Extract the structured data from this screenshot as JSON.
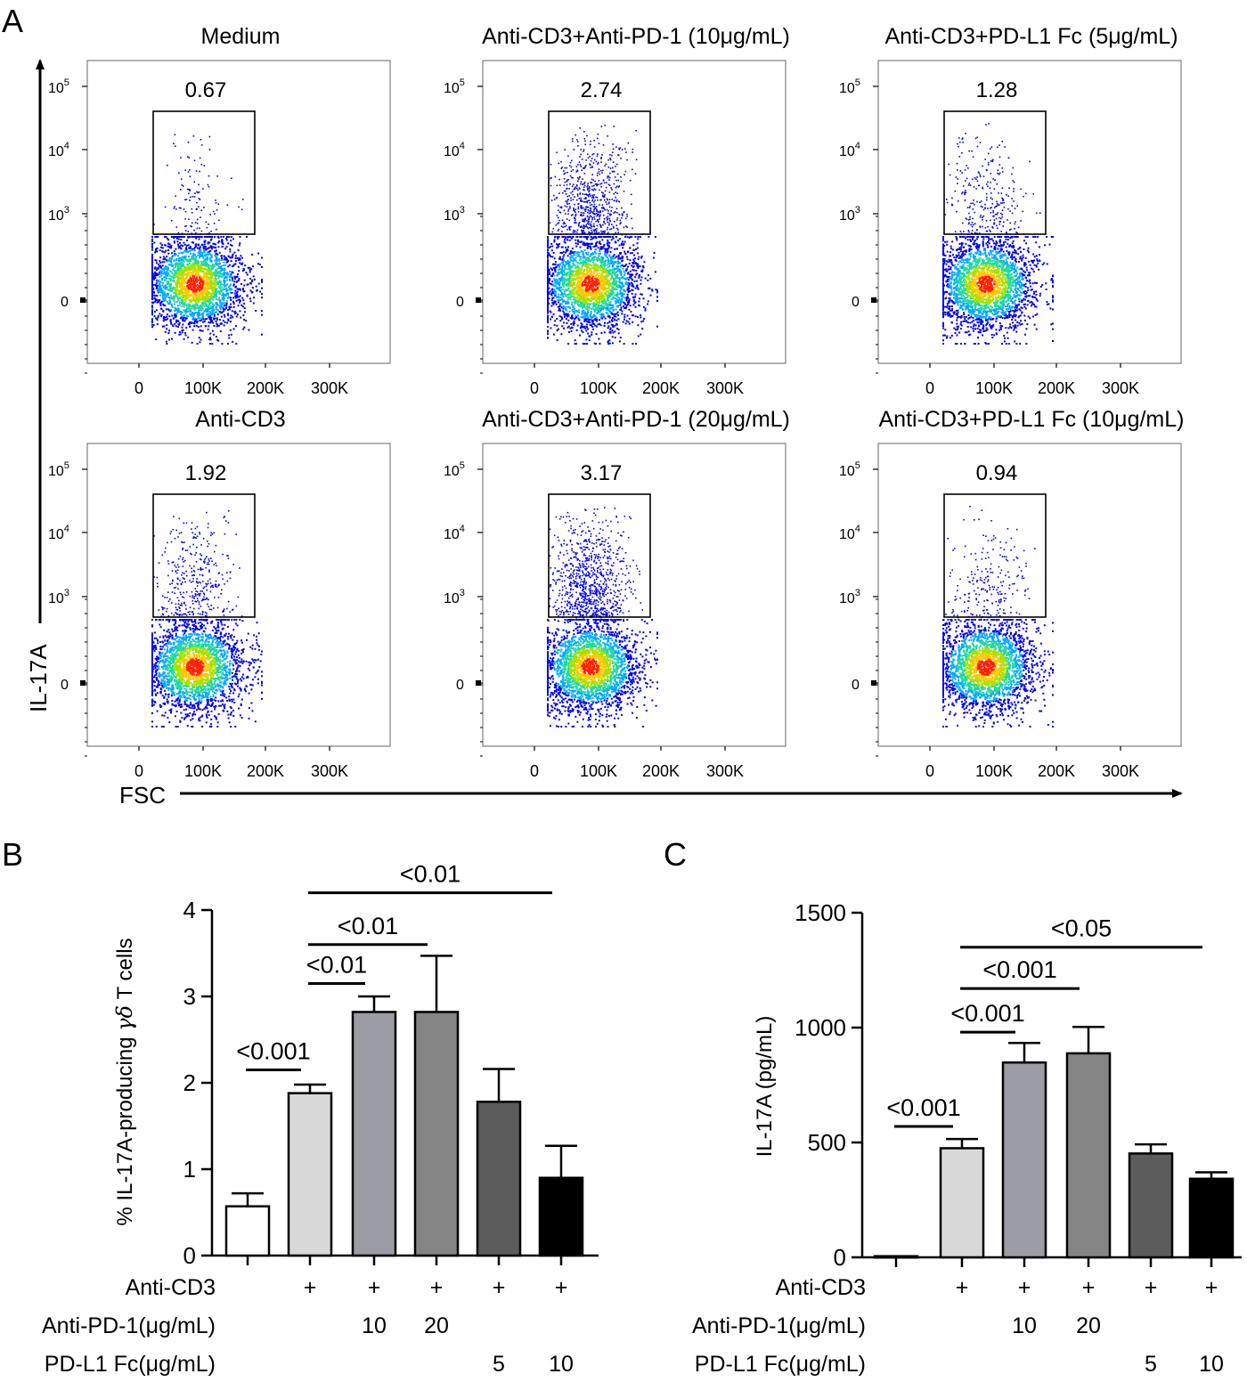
{
  "panel_letters": {
    "a": "A",
    "b": "B",
    "c": "C"
  },
  "colors": {
    "axis": "#000000",
    "density": [
      "#0000ee",
      "#00a8ff",
      "#20d8a0",
      "#a8e000",
      "#ffc800",
      "#ff2000"
    ],
    "bars": [
      "#ffffff",
      "#d8d8d8",
      "#9c9ca4",
      "#848484",
      "#5c5c5c",
      "#000000"
    ]
  },
  "flow": {
    "y_axis_label": "IL-17A",
    "x_axis_label": "FSC",
    "y_ticks": [
      {
        "base": "10",
        "exp": "5"
      },
      {
        "base": "10",
        "exp": "4"
      },
      {
        "base": "10",
        "exp": "3"
      },
      {
        "base": "0",
        "exp": ""
      }
    ],
    "x_ticks": [
      "0",
      "100K",
      "200K",
      "300K"
    ],
    "panels": [
      {
        "title": "Medium",
        "gate_percent": "0.67",
        "upper_events": 120,
        "density_scale": 1.0
      },
      {
        "title": "Anti-CD3+Anti-PD-1 (10μg/mL)",
        "gate_percent": "2.74",
        "upper_events": 700,
        "density_scale": 1.0
      },
      {
        "title": "Anti-CD3+PD-L1 Fc (5μg/mL)",
        "gate_percent": "1.28",
        "upper_events": 280,
        "density_scale": 1.0
      },
      {
        "title": "Anti-CD3",
        "gate_percent": "1.92",
        "upper_events": 380,
        "density_scale": 1.0
      },
      {
        "title": "Anti-CD3+Anti-PD-1 (20μg/mL)",
        "gate_percent": "3.17",
        "upper_events": 900,
        "density_scale": 1.0
      },
      {
        "title": "Anti-CD3+PD-L1 Fc (10μg/mL)",
        "gate_percent": "0.94",
        "upper_events": 230,
        "density_scale": 1.0
      }
    ]
  },
  "chart_data": [
    {
      "type": "bar",
      "panel": "B",
      "ylabel_pre": "% IL-17A-producing ",
      "ylabel_greek": "γδ",
      "ylabel_post": " T cells",
      "ylim": [
        0,
        4
      ],
      "yticks": [
        "0",
        "1",
        "2",
        "3",
        "4"
      ],
      "values": [
        0.57,
        1.88,
        2.82,
        2.82,
        1.78,
        0.9
      ],
      "errors": [
        0.15,
        0.1,
        0.18,
        0.65,
        0.38,
        0.37
      ],
      "significance": [
        {
          "from": 0,
          "to": 1,
          "label": "<0.001",
          "y": 2.15
        },
        {
          "from": 1,
          "to": 2,
          "label": "<0.01",
          "y": 3.15
        },
        {
          "from": 1,
          "to": 3,
          "label": "<0.01",
          "y": 3.6
        },
        {
          "from": 1,
          "to": 5,
          "label": "<0.01",
          "y": 4.2
        }
      ],
      "conditions": [
        {
          "label": "Anti-CD3",
          "cells": [
            "",
            "+",
            "+",
            "+",
            "+",
            "+"
          ]
        },
        {
          "label": "Anti-PD-1(μg/mL)",
          "cells": [
            "",
            "",
            "10",
            "20",
            "",
            ""
          ]
        },
        {
          "label": "PD-L1 Fc(μg/mL)",
          "cells": [
            "",
            "",
            "",
            "",
            "5",
            "10"
          ]
        }
      ]
    },
    {
      "type": "bar",
      "panel": "C",
      "ylabel": "IL-17A (pg/mL)",
      "ylim": [
        0,
        1500
      ],
      "yticks": [
        "0",
        "500",
        "1000",
        "1500"
      ],
      "values": [
        5,
        475,
        848,
        888,
        452,
        342
      ],
      "errors": [
        0,
        40,
        85,
        115,
        40,
        28
      ],
      "significance": [
        {
          "from": 0,
          "to": 1,
          "label": "<0.001",
          "y": 570
        },
        {
          "from": 1,
          "to": 2,
          "label": "<0.001",
          "y": 980
        },
        {
          "from": 1,
          "to": 3,
          "label": "<0.001",
          "y": 1170
        },
        {
          "from": 1,
          "to": 5,
          "label": "<0.05",
          "y": 1350
        }
      ],
      "conditions": [
        {
          "label": "Anti-CD3",
          "cells": [
            "",
            "+",
            "+",
            "+",
            "+",
            "+"
          ]
        },
        {
          "label": "Anti-PD-1(μg/mL)",
          "cells": [
            "",
            "",
            "10",
            "20",
            "",
            ""
          ]
        },
        {
          "label": "PD-L1 Fc(μg/mL)",
          "cells": [
            "",
            "",
            "",
            "",
            "5",
            "10"
          ]
        }
      ]
    }
  ]
}
